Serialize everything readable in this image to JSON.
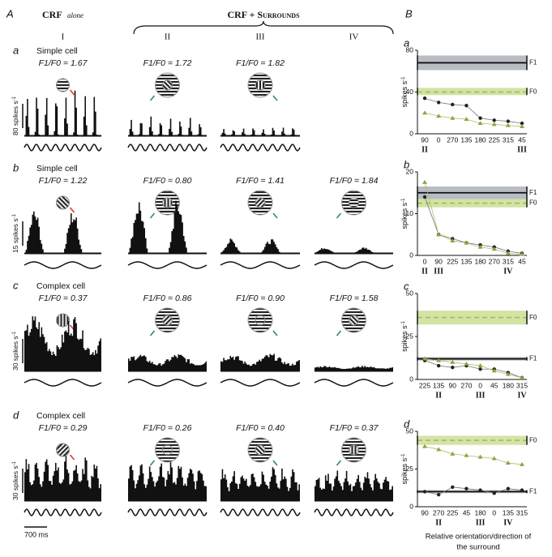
{
  "panel_a": {
    "label": "A",
    "crf_alone": "CRF",
    "crf_alone_note": "alone",
    "surrounds": "CRF + Surrounds",
    "columns": [
      "I",
      "II",
      "III",
      "IV"
    ],
    "rows": [
      {
        "letter": "a",
        "cell_type": "Simple cell",
        "scale": "80 spikes s",
        "scale_sup": "-1",
        "ratios": [
          "F1/F0 = 1.67",
          "F1/F0 = 1.72",
          "F1/F0 = 1.82"
        ]
      },
      {
        "letter": "b",
        "cell_type": "Simple cell",
        "scale": "15 spikes s",
        "scale_sup": "-1",
        "ratios": [
          "F1/F0 = 1.22",
          "F1/F0 = 0.80",
          "F1/F0 = 1.41",
          "F1/F0 = 1.84"
        ]
      },
      {
        "letter": "c",
        "cell_type": "Complex cell",
        "scale": "30 spikes s",
        "scale_sup": "-1",
        "ratios": [
          "F1/F0 = 0.37",
          "F1/F0 = 0.86",
          "F1/F0 = 0.90",
          "F1/F0 = 1.58"
        ]
      },
      {
        "letter": "d",
        "cell_type": "Complex cell",
        "scale": "30 spikes s",
        "scale_sup": "-1",
        "ratios": [
          "F1/F0 = 0.29",
          "F1/F0 = 0.26",
          "F1/F0 = 0.40",
          "F1/F0 = 0.37"
        ]
      }
    ],
    "time_scale": "700 ms"
  },
  "panel_b": {
    "label": "B",
    "x_label": [
      "Relative orientation/direction of",
      "the surround"
    ]
  },
  "chart_data": [
    {
      "type": "line",
      "title": "a",
      "ylabel": "spikes s",
      "ylabel_sup": "-1",
      "categories": [
        "90",
        "0",
        "270",
        "135",
        "180",
        "225",
        "315",
        "45"
      ],
      "category_marks": [
        "II",
        null,
        null,
        null,
        null,
        null,
        null,
        "III"
      ],
      "ylim": [
        0,
        80
      ],
      "yticks": [
        0,
        40,
        80
      ],
      "series": [
        {
          "name": "F1",
          "color": "#222222",
          "band_color": "#b9bcc4",
          "ref": 68,
          "ref_range": [
            61,
            75
          ],
          "values": [
            34,
            30,
            28,
            27,
            15,
            13,
            12,
            10
          ]
        },
        {
          "name": "F0",
          "color": "#8aa83a",
          "band_color": "#d3e3a3",
          "ref": 40,
          "ref_range": [
            37,
            44
          ],
          "values": [
            20,
            17,
            15,
            14,
            10,
            9,
            8,
            7
          ]
        }
      ]
    },
    {
      "type": "line",
      "title": "b",
      "ylabel": "spikes s",
      "ylabel_sup": "-1",
      "categories": [
        "0",
        "90",
        "225",
        "135",
        "180",
        "270",
        "315",
        "45"
      ],
      "category_marks": [
        "II",
        "III",
        null,
        null,
        null,
        null,
        "IV",
        null
      ],
      "ylim": [
        0,
        20
      ],
      "yticks": [
        0,
        10,
        20
      ],
      "series": [
        {
          "name": "F1",
          "color": "#222222",
          "band_color": "#b9bcc4",
          "ref": 15,
          "ref_range": [
            13.5,
            16.5
          ],
          "values": [
            14,
            5,
            4,
            3,
            2.5,
            2,
            1,
            0.5
          ]
        },
        {
          "name": "F0",
          "color": "#8aa83a",
          "band_color": "#d3e3a3",
          "ref": 12.5,
          "ref_range": [
            11.5,
            13.5
          ],
          "values": [
            17.5,
            5,
            3.5,
            3,
            2,
            1.5,
            0.5,
            0.3
          ]
        }
      ]
    },
    {
      "type": "line",
      "title": "c",
      "ylabel": "spikes s",
      "ylabel_sup": "-1",
      "categories": [
        "225",
        "135",
        "90",
        "270",
        "0",
        "45",
        "180",
        "315"
      ],
      "category_marks": [
        null,
        "II",
        null,
        null,
        "III",
        null,
        null,
        "IV"
      ],
      "ylim": [
        0,
        50
      ],
      "yticks": [
        0,
        25,
        50
      ],
      "series": [
        {
          "name": "F1",
          "color": "#222222",
          "band_color": "#b9bcc4",
          "ref": 12,
          "ref_range": [
            11,
            13
          ],
          "values": [
            11,
            8,
            7,
            8,
            6,
            6,
            4,
            1
          ]
        },
        {
          "name": "F0",
          "color": "#8aa83a",
          "band_color": "#d3e3a3",
          "ref": 36,
          "ref_range": [
            32,
            40
          ],
          "values": [
            12,
            11,
            10,
            9,
            8,
            5,
            3,
            1
          ]
        }
      ]
    },
    {
      "type": "line",
      "title": "d",
      "ylabel": "spikes s",
      "ylabel_sup": "-1",
      "categories": [
        "90",
        "270",
        "225",
        "45",
        "180",
        "0",
        "135",
        "315"
      ],
      "category_marks": [
        null,
        "II",
        null,
        null,
        "III",
        null,
        "IV",
        null
      ],
      "ylim": [
        0,
        50
      ],
      "yticks": [
        0,
        25,
        50
      ],
      "series": [
        {
          "name": "F1",
          "color": "#222222",
          "band_color": "#b9bcc4",
          "ref": 10,
          "ref_range": [
            9,
            11
          ],
          "values": [
            10,
            8,
            13,
            12,
            11,
            9,
            12,
            11
          ]
        },
        {
          "name": "F0",
          "color": "#8aa83a",
          "band_color": "#d3e3a3",
          "ref": 44,
          "ref_range": [
            41,
            47
          ],
          "values": [
            40,
            38,
            35,
            34,
            33,
            32,
            29,
            28
          ]
        }
      ]
    }
  ]
}
